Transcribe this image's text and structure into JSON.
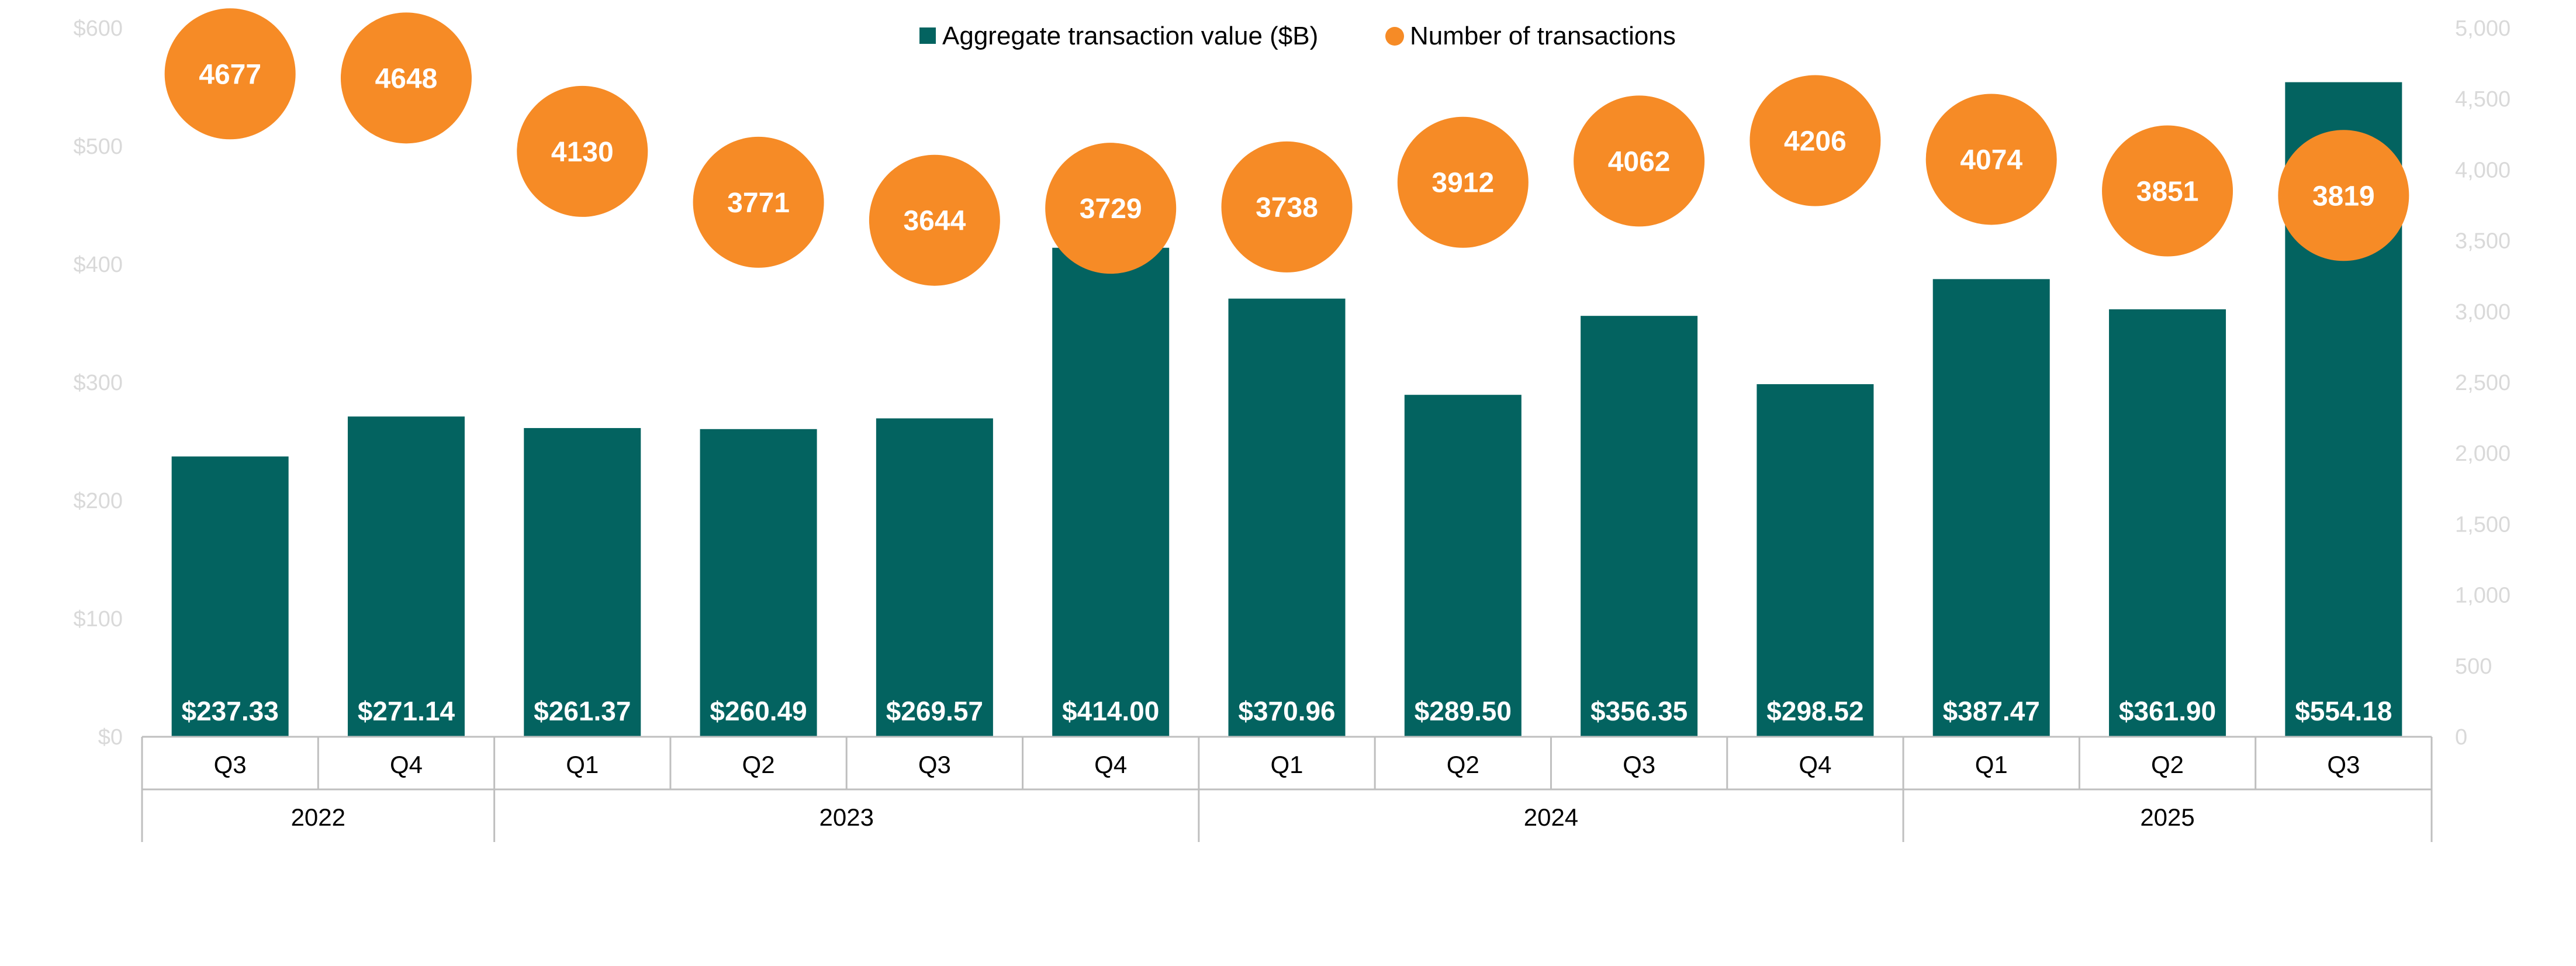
{
  "colors": {
    "bar": "#036360",
    "bubble": "#f68b26",
    "axis_text": "#d9d9d9",
    "axis_line": "#bfbfbf"
  },
  "chart_data": {
    "type": "bar",
    "combo": "bar + bubble (secondary axis)",
    "title": "",
    "legend": {
      "position": "top-center",
      "entries": [
        "Aggregate transaction value ($B)",
        "Number of transactions"
      ]
    },
    "categories": [
      "Q3",
      "Q4",
      "Q1",
      "Q2",
      "Q3",
      "Q4",
      "Q1",
      "Q2",
      "Q3",
      "Q4",
      "Q1",
      "Q2",
      "Q3"
    ],
    "year_groups": [
      {
        "label": "2022",
        "count": 2
      },
      {
        "label": "2023",
        "count": 4
      },
      {
        "label": "2024",
        "count": 4
      },
      {
        "label": "2025",
        "count": 3
      }
    ],
    "series": [
      {
        "name": "Aggregate transaction value ($B)",
        "axis": "left",
        "values": [
          237.33,
          271.14,
          261.37,
          260.49,
          269.57,
          414.0,
          370.96,
          289.5,
          356.35,
          298.52,
          387.47,
          361.9,
          554.18
        ],
        "labels": [
          "$237.33",
          "$271.14",
          "$261.37",
          "$260.49",
          "$269.57",
          "$414.00",
          "$370.96",
          "$289.50",
          "$356.35",
          "$298.52",
          "$387.47",
          "$361.90",
          "$554.18"
        ]
      },
      {
        "name": "Number of transactions",
        "axis": "right",
        "values": [
          4677,
          4648,
          4130,
          3771,
          3644,
          3729,
          3738,
          3912,
          4062,
          4206,
          4074,
          3851,
          3819
        ],
        "labels": [
          "4677",
          "4648",
          "4130",
          "3771",
          "3644",
          "3729",
          "3738",
          "3912",
          "4062",
          "4206",
          "4074",
          "3851",
          "3819"
        ]
      }
    ],
    "left_axis": {
      "ylim": [
        0,
        600
      ],
      "ticks": [
        0,
        100,
        200,
        300,
        400,
        500,
        600
      ],
      "tick_labels": [
        "$0",
        "$100",
        "$200",
        "$300",
        "$400",
        "$500",
        "$600"
      ]
    },
    "right_axis": {
      "ylim": [
        0,
        5000
      ],
      "ticks": [
        0,
        500,
        1000,
        1500,
        2000,
        2500,
        3000,
        3500,
        4000,
        4500,
        5000
      ],
      "tick_labels": [
        "0",
        "500",
        "1,000",
        "1,500",
        "2,000",
        "2,500",
        "3,000",
        "3,500",
        "4,000",
        "4,500",
        "5,000"
      ]
    },
    "grid": false
  }
}
